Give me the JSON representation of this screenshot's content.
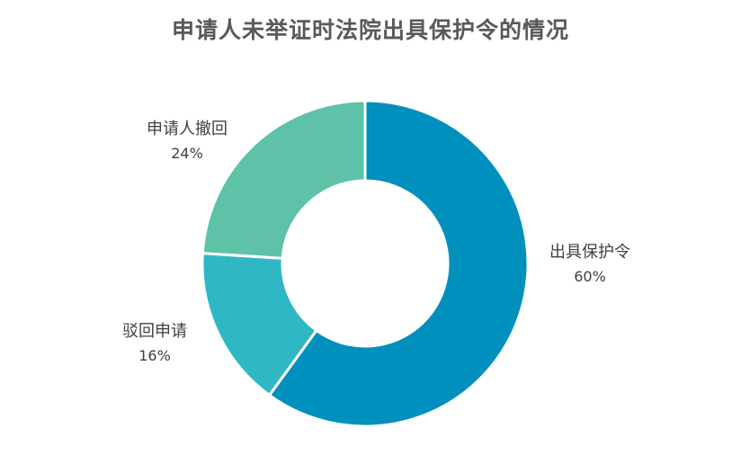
{
  "chart_data": {
    "type": "pie",
    "title": "申请人未举证时法院出具保护令的情况",
    "categories": [
      "出具保护令",
      "驳回申请",
      "申请人撤回"
    ],
    "values": [
      60,
      16,
      24
    ],
    "value_labels": [
      "60%",
      "16%",
      "24%"
    ],
    "colors": [
      "#0090bd",
      "#2fb8c4",
      "#5ec2a8"
    ],
    "donut": true,
    "legend": "none"
  }
}
